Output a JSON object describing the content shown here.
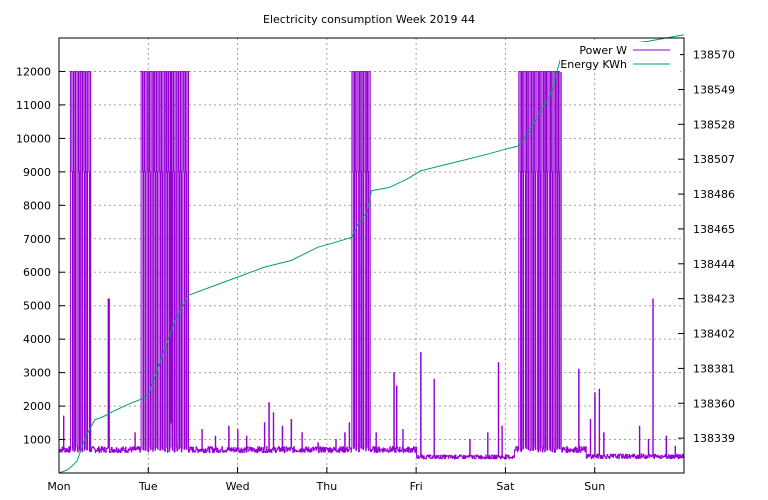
{
  "chart_data": {
    "type": "line",
    "title": "Electricity consumption Week 2019 44",
    "xlabel": "",
    "ylabel": "",
    "x_tick_labels": [
      "Mon",
      "Tue",
      "Wed",
      "Thu",
      "Fri",
      "Sat",
      "Sun"
    ],
    "x_range_days": [
      0,
      7
    ],
    "y_left": {
      "ticks": [
        1000,
        2000,
        3000,
        4000,
        5000,
        6000,
        7000,
        8000,
        9000,
        10000,
        11000,
        12000
      ],
      "range": [
        0,
        13000
      ]
    },
    "y_right": {
      "ticks": [
        138339,
        138360,
        138381,
        138402,
        138423,
        138444,
        138465,
        138486,
        138507,
        138528,
        138549,
        138570
      ],
      "range": [
        138318,
        138580
      ]
    },
    "grid": true,
    "legend_position": "top-right",
    "series": [
      {
        "name": "Power W",
        "axis": "left",
        "color": "#9400d3",
        "baseline": 700,
        "bursts": [
          {
            "start": 0.13,
            "end": 0.35,
            "value": 12000,
            "step": 0.027
          },
          {
            "start": 0.92,
            "end": 1.45,
            "value": 12000,
            "step": 0.027
          },
          {
            "start": 3.28,
            "end": 3.48,
            "value": 12000,
            "step": 0.027
          },
          {
            "start": 5.15,
            "end": 5.62,
            "value": 12000,
            "step": 0.027
          }
        ],
        "spikes": [
          [
            0.05,
            1700
          ],
          [
            0.2,
            800
          ],
          [
            0.55,
            5200
          ],
          [
            0.56,
            5200
          ],
          [
            0.85,
            1200
          ],
          [
            1.25,
            1500
          ],
          [
            1.6,
            1300
          ],
          [
            1.75,
            1100
          ],
          [
            1.9,
            1400
          ],
          [
            2.0,
            1300
          ],
          [
            2.1,
            1100
          ],
          [
            2.3,
            1500
          ],
          [
            2.35,
            2100
          ],
          [
            2.4,
            1800
          ],
          [
            2.5,
            1400
          ],
          [
            2.6,
            1600
          ],
          [
            2.72,
            1200
          ],
          [
            2.9,
            900
          ],
          [
            3.1,
            1000
          ],
          [
            3.2,
            1200
          ],
          [
            3.25,
            1500
          ],
          [
            3.55,
            1200
          ],
          [
            3.75,
            3000
          ],
          [
            3.78,
            2600
          ],
          [
            3.85,
            1300
          ],
          [
            4.05,
            3600
          ],
          [
            4.2,
            2800
          ],
          [
            4.6,
            1000
          ],
          [
            4.8,
            1200
          ],
          [
            4.92,
            3300
          ],
          [
            4.96,
            1400
          ],
          [
            5.82,
            3100
          ],
          [
            5.95,
            1600
          ],
          [
            6.0,
            2400
          ],
          [
            6.05,
            2500
          ],
          [
            6.1,
            1200
          ],
          [
            6.5,
            1400
          ],
          [
            6.6,
            1000
          ],
          [
            6.65,
            5200
          ],
          [
            6.8,
            1100
          ],
          [
            6.9,
            800
          ]
        ]
      },
      {
        "name": "Energy KWh",
        "axis": "right",
        "color": "#009e73",
        "points": [
          [
            0.0,
            138318
          ],
          [
            0.1,
            138320
          ],
          [
            0.2,
            138325
          ],
          [
            0.3,
            138340
          ],
          [
            0.4,
            138350
          ],
          [
            0.5,
            138352
          ],
          [
            0.6,
            138355
          ],
          [
            0.8,
            138360
          ],
          [
            0.9,
            138362
          ],
          [
            1.0,
            138365
          ],
          [
            1.1,
            138380
          ],
          [
            1.2,
            138395
          ],
          [
            1.3,
            138410
          ],
          [
            1.45,
            138425
          ],
          [
            1.7,
            138430
          ],
          [
            2.0,
            138436
          ],
          [
            2.3,
            138442
          ],
          [
            2.6,
            138446
          ],
          [
            2.9,
            138454
          ],
          [
            3.1,
            138457
          ],
          [
            3.28,
            138460
          ],
          [
            3.35,
            138468
          ],
          [
            3.45,
            138475
          ],
          [
            3.5,
            138488
          ],
          [
            3.7,
            138490
          ],
          [
            3.9,
            138495
          ],
          [
            4.05,
            138500
          ],
          [
            4.2,
            138502
          ],
          [
            4.5,
            138506
          ],
          [
            4.8,
            138510
          ],
          [
            5.0,
            138513
          ],
          [
            5.15,
            138515
          ],
          [
            5.25,
            138522
          ],
          [
            5.35,
            138532
          ],
          [
            5.5,
            138545
          ],
          [
            5.62,
            138568
          ],
          [
            5.8,
            138570
          ],
          [
            6.0,
            138573
          ],
          [
            6.3,
            138576
          ],
          [
            6.6,
            138578
          ],
          [
            7.0,
            138582
          ]
        ]
      }
    ]
  }
}
